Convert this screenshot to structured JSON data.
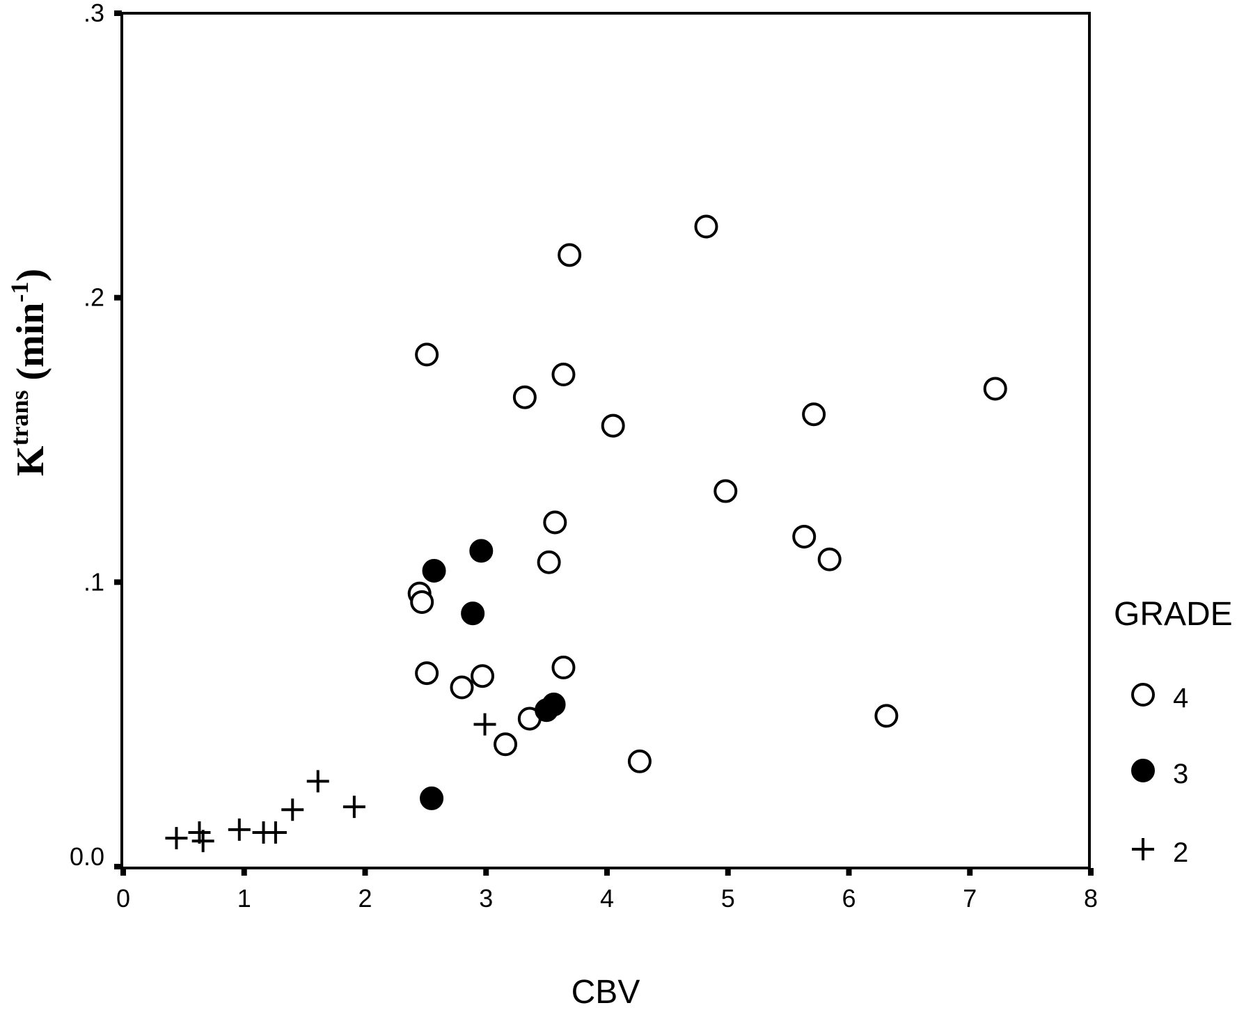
{
  "chart_data": {
    "type": "scatter",
    "title": "",
    "xlabel": "CBV",
    "ylabel": {
      "base": "K",
      "superscript": "trans",
      "unit_open": " (min",
      "unit_sup": "-1",
      "unit_close": ")"
    },
    "xlim": [
      0,
      8
    ],
    "ylim": [
      0,
      0.3
    ],
    "x_ticks": [
      {
        "value": 0,
        "label": "0"
      },
      {
        "value": 1,
        "label": "1"
      },
      {
        "value": 2,
        "label": "2"
      },
      {
        "value": 3,
        "label": "3"
      },
      {
        "value": 4,
        "label": "4"
      },
      {
        "value": 5,
        "label": "5"
      },
      {
        "value": 6,
        "label": "6"
      },
      {
        "value": 7,
        "label": "7"
      },
      {
        "value": 8,
        "label": "8"
      }
    ],
    "y_ticks": [
      {
        "value": 0,
        "label": "0.0"
      },
      {
        "value": 0.1,
        "label": ".1"
      },
      {
        "value": 0.2,
        "label": ".2"
      },
      {
        "value": 0.3,
        "label": ".3"
      }
    ],
    "grid": false,
    "legend": {
      "title": "GRADE",
      "placement": "right"
    },
    "series": [
      {
        "name": "4",
        "marker": "open-circle",
        "points": [
          [
            4.82,
            0.225
          ],
          [
            3.69,
            0.215
          ],
          [
            2.51,
            0.18
          ],
          [
            3.64,
            0.173
          ],
          [
            3.32,
            0.165
          ],
          [
            7.21,
            0.168
          ],
          [
            4.05,
            0.155
          ],
          [
            5.71,
            0.159
          ],
          [
            4.98,
            0.132
          ],
          [
            3.57,
            0.121
          ],
          [
            5.63,
            0.116
          ],
          [
            3.52,
            0.107
          ],
          [
            5.84,
            0.108
          ],
          [
            2.45,
            0.096
          ],
          [
            2.47,
            0.093
          ],
          [
            2.51,
            0.068
          ],
          [
            3.64,
            0.07
          ],
          [
            2.8,
            0.063
          ],
          [
            2.97,
            0.067
          ],
          [
            3.36,
            0.052
          ],
          [
            3.16,
            0.043
          ],
          [
            6.31,
            0.053
          ],
          [
            4.27,
            0.037
          ]
        ]
      },
      {
        "name": "3",
        "marker": "filled-circle",
        "points": [
          [
            2.96,
            0.111
          ],
          [
            2.57,
            0.104
          ],
          [
            2.89,
            0.089
          ],
          [
            3.56,
            0.057
          ],
          [
            3.5,
            0.055
          ],
          [
            2.55,
            0.024
          ]
        ]
      },
      {
        "name": "2",
        "marker": "plus",
        "points": [
          [
            2.99,
            0.05
          ],
          [
            1.61,
            0.03
          ],
          [
            1.91,
            0.021
          ],
          [
            1.4,
            0.02
          ],
          [
            0.96,
            0.013
          ],
          [
            1.16,
            0.012
          ],
          [
            1.26,
            0.012
          ],
          [
            0.63,
            0.012
          ],
          [
            0.44,
            0.01
          ],
          [
            0.66,
            0.009
          ]
        ]
      }
    ]
  }
}
